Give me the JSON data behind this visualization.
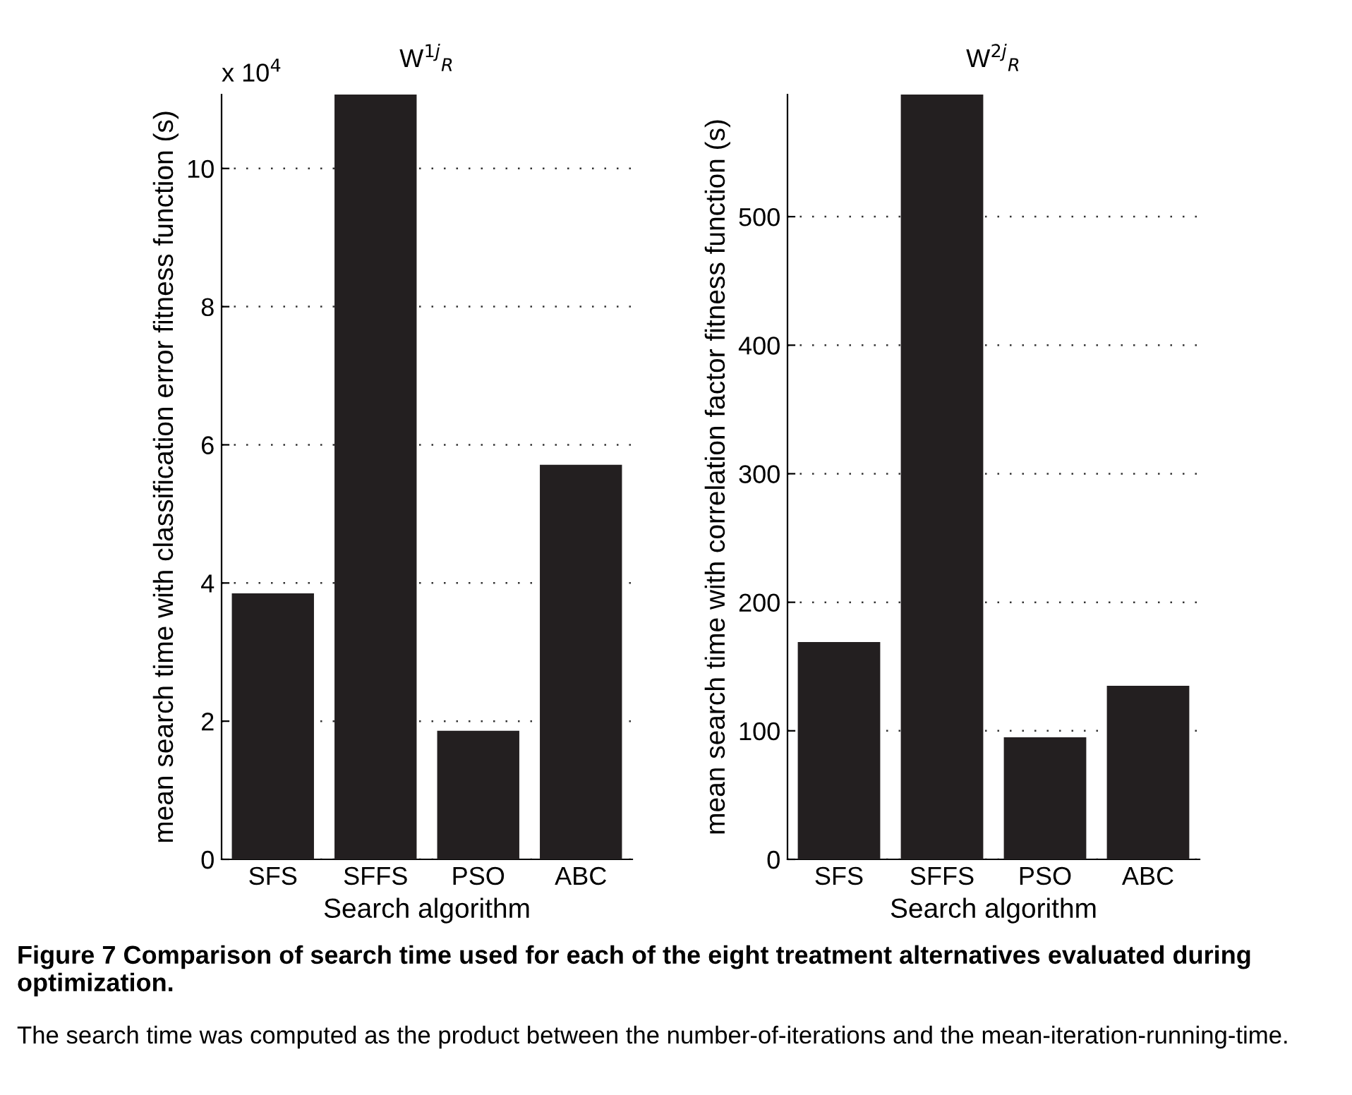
{
  "chart_data": [
    {
      "type": "bar",
      "title": "W$^{1j}$$_{R}$",
      "xlabel": "Search algorithm",
      "ylabel": "mean search time with classification error fitness function (s)",
      "categories": [
        "SFS",
        "SFFS",
        "PSO",
        "ABC"
      ],
      "values": [
        3.85,
        11.07,
        1.86,
        5.71
      ],
      "color": "#231f20",
      "ylim": [
        0,
        11.07
      ],
      "yticks": [
        0,
        2,
        4,
        6,
        8,
        10
      ],
      "grid": "y",
      "annotations": [
        "x 10$^{4}$",
        "Figure 7 Comparison of search time used for each of the eight treatment alternatives evaluated during optimization.",
        "The search time was computed as the product between the number-of-iterations and the mean-iteration-running-time."
      ]
    },
    {
      "type": "bar",
      "title": "W$^{2j}$$_{R}$",
      "xlabel": "Search algorithm",
      "ylabel": "mean search time with correlation factor fitness function (s)",
      "categories": [
        "SFS",
        "SFFS",
        "PSO",
        "ABC"
      ],
      "values": [
        169,
        595,
        95,
        135
      ],
      "color": "#231f20",
      "ylim": [
        0,
        595
      ],
      "yticks": [
        0,
        100,
        200,
        300,
        400,
        500
      ],
      "grid": "y"
    }
  ]
}
